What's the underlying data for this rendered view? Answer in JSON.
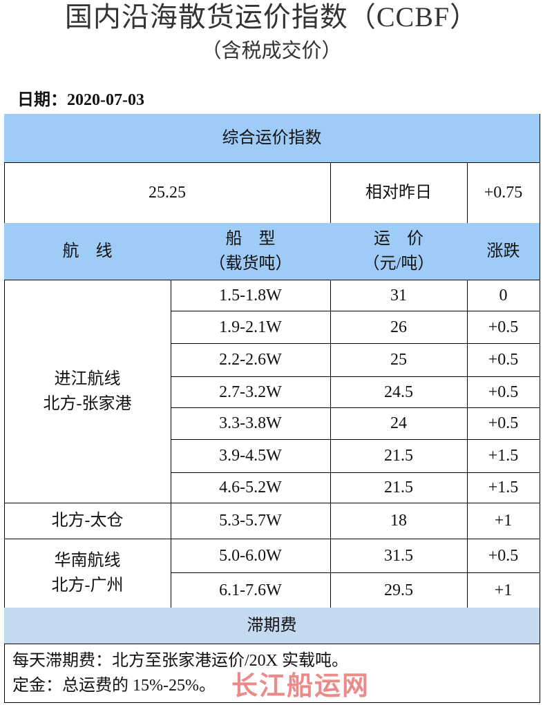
{
  "header": {
    "title": "国内沿海散货运价指数（CCBF）",
    "subtitle": "（含税成交价）",
    "date": "日期：2020-07-03"
  },
  "table": {
    "composite_title": "综合运价指数",
    "composite_index": "25.25",
    "compare_label": "相对昨日",
    "compare_change": "+0.75",
    "columns": [
      [
        "航　线"
      ],
      [
        "船　型",
        "（载货吨）"
      ],
      [
        "运　价",
        "（元/吨）"
      ],
      [
        "涨跌"
      ]
    ],
    "groups": [
      {
        "route": [
          "进江航线",
          "北方-张家港"
        ],
        "rows": [
          [
            "1.5-1.8W",
            "31",
            "0"
          ],
          [
            "1.9-2.1W",
            "26",
            "+0.5"
          ],
          [
            "2.2-2.6W",
            "25",
            "+0.5"
          ],
          [
            "2.7-3.2W",
            "24.5",
            "+0.5"
          ],
          [
            "3.3-3.8W",
            "24",
            "+0.5"
          ],
          [
            "3.9-4.5W",
            "21.5",
            "+1.5"
          ],
          [
            "4.6-5.2W",
            "21.5",
            "+1.5"
          ]
        ]
      },
      {
        "route": [
          "北方-太仓"
        ],
        "rows": [
          [
            "5.3-5.7W",
            "18",
            "+1"
          ]
        ]
      },
      {
        "route": [
          "华南航线",
          "北方-广州"
        ],
        "rows": [
          [
            "5.0-6.0W",
            "31.5",
            "+0.5"
          ],
          [
            "6.1-7.6W",
            "29.5",
            "+1"
          ]
        ]
      }
    ],
    "demurrage_title": "滞期费",
    "notes": [
      "每天滞期费：北方至张家港运价/20X 实载吨。",
      "定金：总运费的 15%-25%。"
    ]
  },
  "watermark": "长江船运网"
}
